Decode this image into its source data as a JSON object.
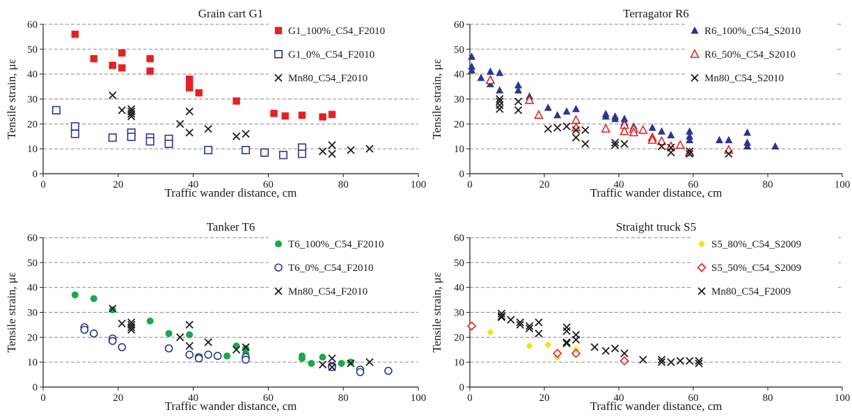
{
  "chart_data": [
    {
      "type": "scatter",
      "title": "Grain cart G1",
      "xlabel": "Traffic wander distance, cm",
      "ylabel": "Tensile strain, με",
      "xlim": [
        0,
        100
      ],
      "ylim": [
        0,
        60
      ],
      "xticks": [
        "0",
        "20",
        "40",
        "60",
        "80",
        "100"
      ],
      "yticks": [
        "0",
        "10",
        "20",
        "30",
        "40",
        "50",
        "60"
      ],
      "grid": "horizontal dashed",
      "legend_position": "top-right",
      "series": [
        {
          "name": "G1_100%_C54_F2010",
          "marker": "square-filled",
          "color": "#e52222",
          "x": [
            8.5,
            13.5,
            18.5,
            21,
            21,
            28.5,
            28.5,
            39,
            39,
            39,
            41.5,
            51.5,
            61.5,
            64.5,
            69,
            74.5,
            77
          ],
          "y": [
            56,
            46.2,
            43.5,
            48.5,
            42.5,
            46.2,
            41.2,
            38,
            35.5,
            34.5,
            32.5,
            29.2,
            24.2,
            23.2,
            23.5,
            22.8,
            23.8
          ]
        },
        {
          "name": "G1_0%_C54_F2010",
          "marker": "square-open",
          "color": "#2b3590",
          "x": [
            3.5,
            8.5,
            8.5,
            18.5,
            23.5,
            23.5,
            28.5,
            28.5,
            33.5,
            33.5,
            44,
            54,
            59,
            64,
            69,
            69
          ],
          "y": [
            25.5,
            19,
            16,
            14.5,
            16.5,
            14.8,
            14.5,
            13,
            14,
            12,
            9.5,
            9.5,
            8.5,
            7.5,
            10.5,
            8
          ]
        },
        {
          "name": "Mn80_C54_F2010",
          "marker": "x",
          "color": "#1a1a1a",
          "x": [
            18.5,
            21,
            23.5,
            23.5,
            23.5,
            23.5,
            36.5,
            39,
            39,
            44,
            51.5,
            54,
            74.5,
            77,
            77,
            82,
            87
          ],
          "y": [
            31.5,
            25.5,
            26,
            25,
            24,
            23,
            20,
            25,
            16.5,
            18,
            15,
            16,
            9,
            11.5,
            8,
            9.5,
            10
          ]
        }
      ]
    },
    {
      "type": "scatter",
      "title": "Terragator R6",
      "xlabel": "Traffic wander distance, cm",
      "ylabel": "Tensile strain, με",
      "xlim": [
        0,
        100
      ],
      "ylim": [
        0,
        60
      ],
      "xticks": [
        "0",
        "20",
        "40",
        "60",
        "80",
        "100"
      ],
      "yticks": [
        "0",
        "10",
        "20",
        "30",
        "40",
        "50",
        "60"
      ],
      "grid": "horizontal dashed",
      "legend_position": "top-right",
      "series": [
        {
          "name": "R6_100%_C54_S2010",
          "marker": "triangle-filled",
          "color": "#2b3590",
          "x": [
            0.5,
            0.5,
            0.5,
            3,
            5.5,
            5.5,
            5.5,
            8,
            8,
            13,
            13,
            16,
            21,
            23.5,
            26,
            28.5,
            36.5,
            36.5,
            39,
            39,
            41.5,
            41.5,
            44,
            49,
            51.5,
            54,
            59,
            59,
            59,
            67,
            69.5,
            74.5,
            74.5,
            74.5,
            82
          ],
          "y": [
            47,
            43,
            41.5,
            38.5,
            41,
            38,
            36,
            40.5,
            33.5,
            35.5,
            33.5,
            31,
            26.5,
            23.5,
            25,
            26,
            24,
            23,
            23,
            22,
            22,
            20.5,
            19,
            18.5,
            17,
            15.5,
            17,
            15,
            13.5,
            13.5,
            13.5,
            16.5,
            12.5,
            11,
            11
          ]
        },
        {
          "name": "R6_50%_C54_S2010",
          "marker": "triangle-open",
          "color": "#e52222",
          "x": [
            5.5,
            16,
            18.5,
            28.5,
            28.5,
            36.5,
            41.5,
            41.5,
            44,
            44,
            46.5,
            49,
            49,
            51.5,
            54,
            56.5,
            59,
            69.5
          ],
          "y": [
            37.5,
            29.5,
            23.5,
            21.5,
            18.5,
            18,
            19.5,
            17,
            18,
            16.5,
            17.5,
            14.5,
            13.5,
            13,
            11,
            11.5,
            8.5,
            9.5
          ]
        },
        {
          "name": "Mn80_C54_S2010",
          "marker": "x",
          "color": "#1a1a1a",
          "x": [
            8,
            8,
            8,
            8,
            13,
            13,
            21,
            23.5,
            26,
            28.5,
            28.5,
            31,
            31,
            39,
            39,
            41.5,
            51.5,
            54,
            54,
            59,
            59,
            69.5
          ],
          "y": [
            30,
            29,
            27.5,
            26,
            29,
            25.5,
            18,
            18.5,
            19,
            17.5,
            14.5,
            17.5,
            12,
            12.5,
            11.5,
            12,
            11,
            10.5,
            8.5,
            9,
            8,
            8
          ]
        }
      ]
    },
    {
      "type": "scatter",
      "title": "Tanker T6",
      "xlabel": "Traffic wander distance, cm",
      "ylabel": "Tensile strain, με",
      "xlim": [
        0,
        100
      ],
      "ylim": [
        0,
        60
      ],
      "xticks": [
        "0",
        "20",
        "40",
        "60",
        "80",
        "100"
      ],
      "yticks": [
        "0",
        "10",
        "20",
        "30",
        "40",
        "50",
        "60"
      ],
      "grid": "horizontal dashed",
      "legend_position": "top-right",
      "series": [
        {
          "name": "T6_100%_C54_F2010",
          "marker": "circle-filled",
          "color": "#19a84a",
          "x": [
            8.5,
            13.5,
            18.5,
            28.5,
            33.5,
            39,
            49,
            51.5,
            54,
            54,
            69,
            69,
            71.5,
            74.5,
            79.5,
            82
          ],
          "y": [
            37,
            35.5,
            31,
            26.5,
            21.5,
            21,
            12.5,
            16.5,
            15.5,
            13.5,
            12.5,
            11.5,
            9.5,
            12,
            9.5,
            10
          ]
        },
        {
          "name": "T6_0%_C54_F2010",
          "marker": "circle-open",
          "color": "#2b3590",
          "x": [
            11,
            11,
            13.5,
            18.5,
            18.5,
            21,
            33.5,
            39,
            41.5,
            41.5,
            44,
            46.5,
            54,
            54,
            77,
            77,
            84.5,
            84.5,
            92
          ],
          "y": [
            24,
            23,
            21.5,
            19.5,
            18.5,
            16,
            15.5,
            13,
            12,
            11.5,
            13,
            12.5,
            12,
            11,
            8.5,
            8,
            7,
            6,
            6.5
          ]
        },
        {
          "name": "Mn80_C54_F2010",
          "marker": "x",
          "color": "#1a1a1a",
          "x": [
            18.5,
            21,
            23.5,
            23.5,
            23.5,
            23.5,
            36.5,
            39,
            39,
            44,
            51.5,
            54,
            74.5,
            77,
            77,
            82,
            87
          ],
          "y": [
            31.5,
            25.5,
            26,
            25,
            24,
            23,
            20,
            25,
            16.5,
            18,
            15,
            16,
            9,
            11.5,
            8,
            9.5,
            10
          ]
        }
      ]
    },
    {
      "type": "scatter",
      "title": "Straight truck S5",
      "xlabel": "Traffic wander distance, cm",
      "ylabel": "Tensile strain, με",
      "xlim": [
        0,
        100
      ],
      "ylim": [
        0,
        60
      ],
      "xticks": [
        "0",
        "20",
        "40",
        "60",
        "80",
        "100"
      ],
      "yticks": [
        "0",
        "10",
        "20",
        "30",
        "40",
        "50",
        "60"
      ],
      "grid": "horizontal dashed",
      "legend_position": "top-right",
      "series": [
        {
          "name": "S5_80%_C54_S2009",
          "marker": "diamond-filled",
          "color": "#f5e10f",
          "x": [
            0.5,
            5.5,
            16,
            21,
            23.5,
            28.5
          ],
          "y": [
            25,
            22,
            16.5,
            17,
            12,
            15
          ]
        },
        {
          "name": "S5_50%_C54_S2009",
          "marker": "diamond-open",
          "color": "#e52222",
          "x": [
            0.5,
            23.5,
            28.5,
            41.5
          ],
          "y": [
            24.5,
            13.5,
            13.5,
            10.5
          ]
        },
        {
          "name": "Mn80_C54_F2009",
          "marker": "x",
          "color": "#1a1a1a",
          "x": [
            8.5,
            8.5,
            8.5,
            11,
            13.5,
            13.5,
            16,
            16,
            18.5,
            18.5,
            26,
            26,
            26,
            26,
            28.5,
            28.5,
            33.5,
            36.5,
            39,
            41.5,
            46.5,
            51.5,
            51.5,
            54,
            56.5,
            59,
            61.5,
            61.5
          ],
          "y": [
            29.5,
            28.5,
            28,
            27,
            26,
            25,
            24.5,
            23.5,
            26,
            21.5,
            24,
            22.5,
            18,
            17.5,
            21,
            19,
            16,
            14.5,
            15.5,
            13.5,
            11,
            11,
            10,
            10,
            10.5,
            10.5,
            10.5,
            9.5
          ]
        }
      ]
    }
  ]
}
